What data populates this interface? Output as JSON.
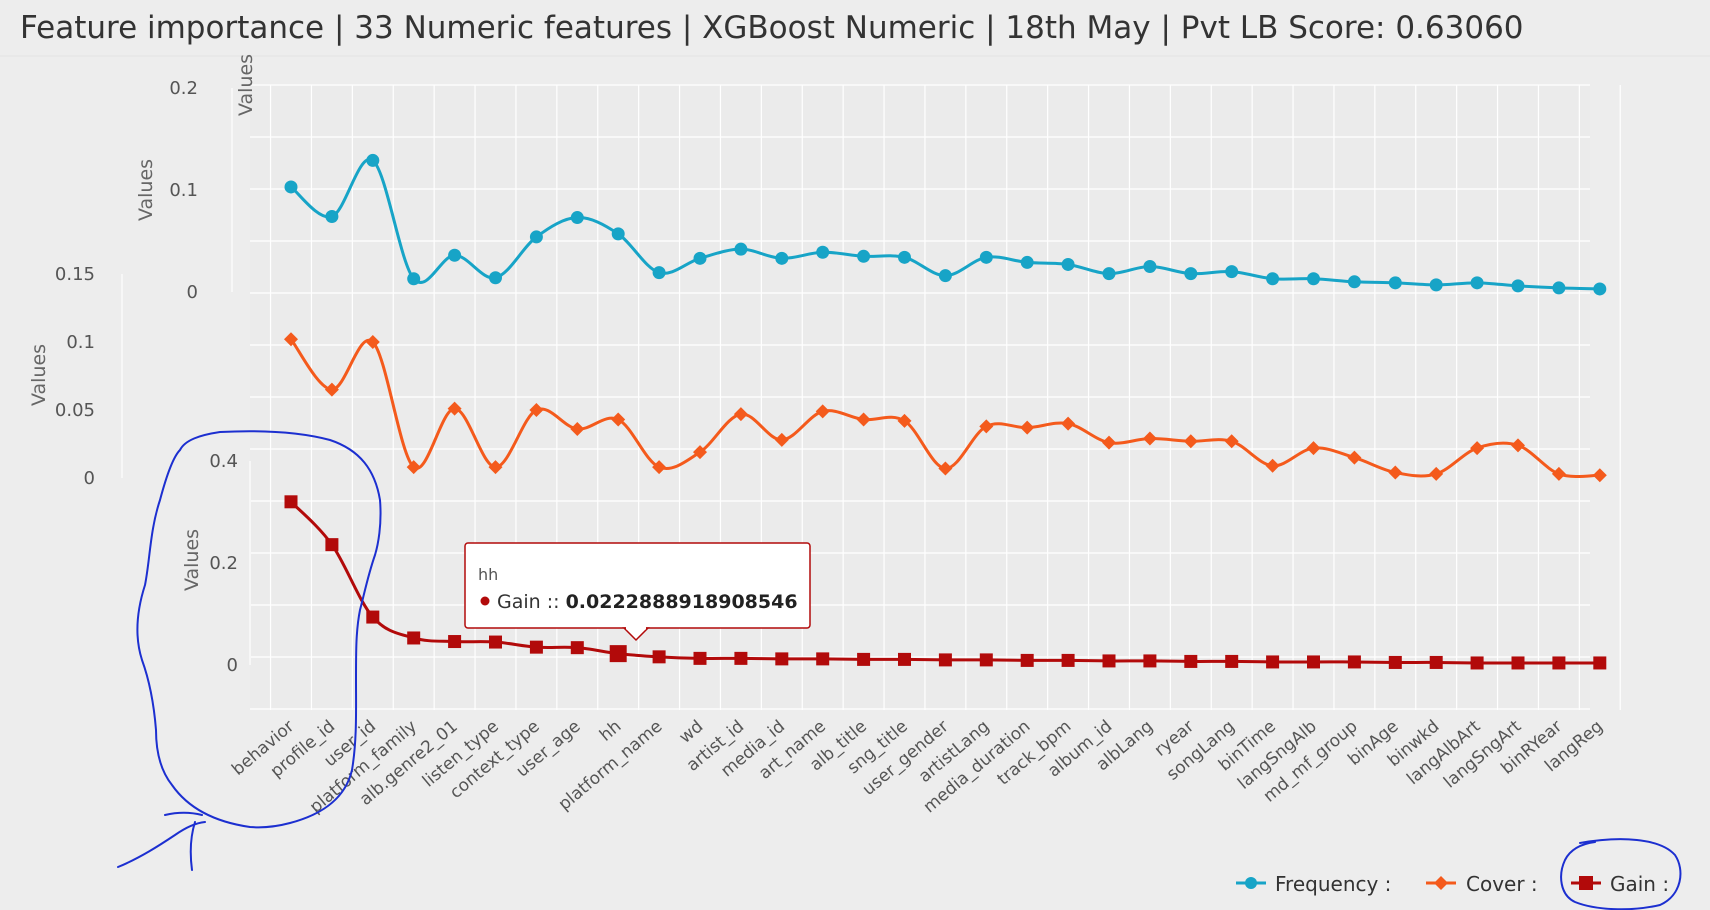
{
  "title": "Feature importance | 33 Numeric features | XGBoost Numeric | 18th May | Pvt LB Score: 0.63060",
  "chart_data": {
    "type": "line",
    "categories": [
      "behavior",
      "profile_id",
      "user_id",
      "platform_family",
      "alb.genre2_01",
      "listen_type",
      "context_type",
      "user_age",
      "hh",
      "platform_name",
      "wd",
      "artist_id",
      "media_id",
      "art_name",
      "alb_title",
      "sng_title",
      "user_gender",
      "artistLang",
      "media_duration",
      "track_bpm",
      "album_id",
      "albLang",
      "ryear",
      "songLang",
      "binTime",
      "langSngAlb",
      "md_mf_group",
      "binAge",
      "binwkd",
      "langAlbArt",
      "langSngArt",
      "binRYear",
      "langReg"
    ],
    "panels": [
      {
        "name": "Frequency :",
        "color": "#17a4c7",
        "marker": "circle",
        "ylabel": "Values",
        "yticks": [
          "0",
          "0.1",
          "0.2"
        ],
        "ylim": [
          0,
          0.2
        ],
        "values": [
          0.103,
          0.074,
          0.129,
          0.013,
          0.036,
          0.014,
          0.054,
          0.073,
          0.057,
          0.019,
          0.033,
          0.042,
          0.033,
          0.039,
          0.035,
          0.034,
          0.016,
          0.034,
          0.029,
          0.027,
          0.018,
          0.025,
          0.018,
          0.02,
          0.013,
          0.013,
          0.01,
          0.009,
          0.007,
          0.009,
          0.006,
          0.004,
          0.003
        ]
      },
      {
        "name": "Cover :",
        "color": "#f45a1c",
        "marker": "diamond",
        "ylabel": "Values",
        "yticks": [
          "0",
          "0.05",
          "0.1",
          "0.15"
        ],
        "ylim": [
          0,
          0.15
        ],
        "values": [
          0.102,
          0.065,
          0.1,
          0.008,
          0.051,
          0.008,
          0.05,
          0.036,
          0.043,
          0.008,
          0.019,
          0.047,
          0.028,
          0.049,
          0.043,
          0.042,
          0.007,
          0.038,
          0.037,
          0.04,
          0.026,
          0.029,
          0.027,
          0.027,
          0.009,
          0.022,
          0.015,
          0.004,
          0.003,
          0.022,
          0.024,
          0.003,
          0.002
        ]
      },
      {
        "name": "Gain :",
        "color": "#b20a0a",
        "marker": "square",
        "ylabel": "Values",
        "yticks": [
          "0",
          "0.2",
          "0.4"
        ],
        "ylim": [
          0,
          0.4
        ],
        "values": [
          0.32,
          0.236,
          0.094,
          0.053,
          0.046,
          0.045,
          0.035,
          0.034,
          0.0223,
          0.016,
          0.013,
          0.013,
          0.012,
          0.012,
          0.011,
          0.011,
          0.01,
          0.01,
          0.009,
          0.009,
          0.008,
          0.008,
          0.007,
          0.007,
          0.006,
          0.006,
          0.006,
          0.005,
          0.005,
          0.004,
          0.004,
          0.004,
          0.004
        ]
      }
    ],
    "legend": [
      "Frequency :",
      "Cover :",
      "Gain :"
    ],
    "legend_placement": "bottom-right",
    "tooltip": {
      "category": "hh",
      "series": "Gain",
      "separator": " :: ",
      "value": "0.0222888918908546"
    }
  },
  "colors": {
    "background": "#ededed",
    "grid": "#ffffff",
    "annotation": "#1c2fd0"
  }
}
